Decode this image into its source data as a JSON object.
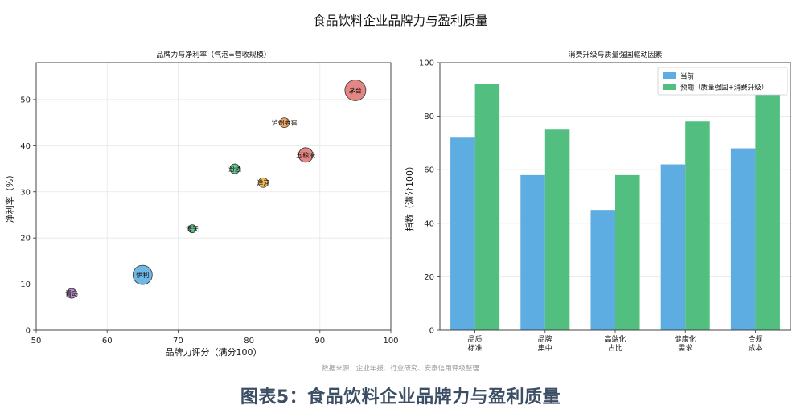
{
  "page": {
    "main_title": "食品饮料企业品牌力与盈利质量",
    "source_note": "数据来源：企业年报、行业研究、安泰信用评级整理",
    "figure_caption": "图表5：食品饮料企业品牌力与盈利质量"
  },
  "chart_data": [
    {
      "type": "scatter",
      "title": "品牌力与净利率（气泡=营收规模）",
      "xlabel": "品牌力评分（满分100）",
      "ylabel": "净利率（%）",
      "xlim": [
        50,
        100
      ],
      "ylim": [
        0,
        58
      ],
      "xticks": [
        50,
        60,
        70,
        80,
        90,
        100
      ],
      "yticks": [
        0,
        10,
        20,
        30,
        40,
        50
      ],
      "grid": true,
      "points": [
        {
          "label": "茅台",
          "x": 95,
          "y": 52,
          "size": 10,
          "color": "#d9534f"
        },
        {
          "label": "泸州老窖",
          "x": 85,
          "y": 45,
          "size": 3,
          "color": "#e67e22"
        },
        {
          "label": "五粮液",
          "x": 88,
          "y": 38,
          "size": 6,
          "color": "#d9534f"
        },
        {
          "label": "汾酒",
          "x": 78,
          "y": 35,
          "size": 3,
          "color": "#27ae60"
        },
        {
          "label": "洋河",
          "x": 82,
          "y": 32,
          "size": 3,
          "color": "#f39c12"
        },
        {
          "label": "海天",
          "x": 72,
          "y": 22,
          "size": 2,
          "color": "#27ae60"
        },
        {
          "label": "伊利",
          "x": 65,
          "y": 12,
          "size": 9,
          "color": "#3498db"
        },
        {
          "label": "青岛",
          "x": 55,
          "y": 8,
          "size": 3,
          "color": "#9b59b6"
        }
      ]
    },
    {
      "type": "bar",
      "title": "消费升级与质量强国驱动因素",
      "xlabel": "",
      "ylabel": "指数（满分100）",
      "ylim": [
        0,
        100
      ],
      "yticks": [
        0,
        20,
        40,
        60,
        80,
        100
      ],
      "grid": true,
      "legend_position": "top-right",
      "categories": [
        "品质\n标准",
        "品牌\n集中",
        "高端化\n占比",
        "健康化\n需求",
        "合规\n成本"
      ],
      "series": [
        {
          "name": "当前",
          "values": [
            72,
            58,
            45,
            62,
            68
          ],
          "color": "#5dade2"
        },
        {
          "name": "预期（质量强国+消费升级）",
          "values": [
            92,
            75,
            58,
            78,
            88
          ],
          "color": "#52be80"
        }
      ]
    }
  ]
}
